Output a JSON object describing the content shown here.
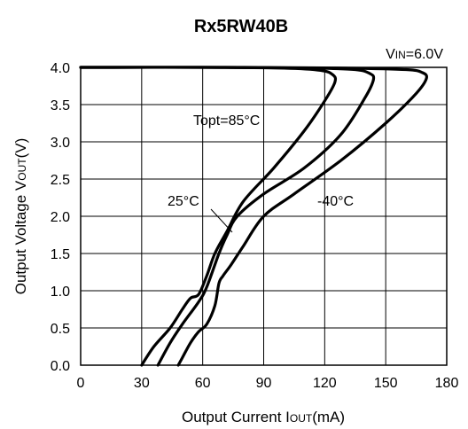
{
  "chart_data": {
    "type": "line",
    "title": "Rx5RW40B",
    "condition": {
      "main": "V",
      "sub": "IN",
      "rest": "=6.0V"
    },
    "xlabel": {
      "pre": "Output Current I",
      "sub": "OUT",
      "post": "(mA)"
    },
    "ylabel": {
      "pre": "Output Voltage V",
      "sub": "OUT",
      "post": "(V)"
    },
    "xlim": [
      0,
      180
    ],
    "ylim": [
      0,
      4.0
    ],
    "xticks": [
      "0",
      "30",
      "60",
      "90",
      "120",
      "150",
      "180"
    ],
    "yticks": [
      "0.0",
      "0.5",
      "1.0",
      "1.5",
      "2.0",
      "2.5",
      "3.0",
      "3.5",
      "4.0"
    ],
    "grid": "major",
    "annotations": [
      "Topt=85°C",
      "25°C",
      "-40°C"
    ],
    "series": [
      {
        "name": "Topt=85°C",
        "x": [
          0,
          60,
          100,
          118,
          124,
          125,
          120,
          110,
          95,
          80,
          72,
          66,
          62,
          58,
          54,
          50,
          44,
          36,
          30
        ],
        "y": [
          4.0,
          4.0,
          3.99,
          3.96,
          3.9,
          3.8,
          3.55,
          3.15,
          2.65,
          2.2,
          1.8,
          1.5,
          1.2,
          0.95,
          0.9,
          0.75,
          0.5,
          0.25,
          0.0
        ]
      },
      {
        "name": "25°C",
        "x": [
          0,
          70,
          115,
          135,
          142,
          144,
          140,
          128,
          110,
          90,
          77,
          72,
          68,
          62,
          58,
          50,
          44,
          38
        ],
        "y": [
          4.0,
          4.0,
          3.99,
          3.97,
          3.92,
          3.84,
          3.6,
          3.1,
          2.65,
          2.3,
          2.0,
          1.75,
          1.5,
          1.05,
          0.85,
          0.55,
          0.3,
          0.0
        ]
      },
      {
        "name": "-40°C",
        "x": [
          0,
          80,
          130,
          160,
          168,
          170,
          165,
          150,
          128,
          105,
          90,
          80,
          74,
          70,
          68,
          66,
          62,
          58,
          54,
          50,
          48
        ],
        "y": [
          4.0,
          4.0,
          3.99,
          3.97,
          3.93,
          3.85,
          3.65,
          3.25,
          2.75,
          2.3,
          2.0,
          1.6,
          1.35,
          1.2,
          1.1,
          0.8,
          0.55,
          0.45,
          0.3,
          0.1,
          0.0
        ]
      }
    ]
  }
}
